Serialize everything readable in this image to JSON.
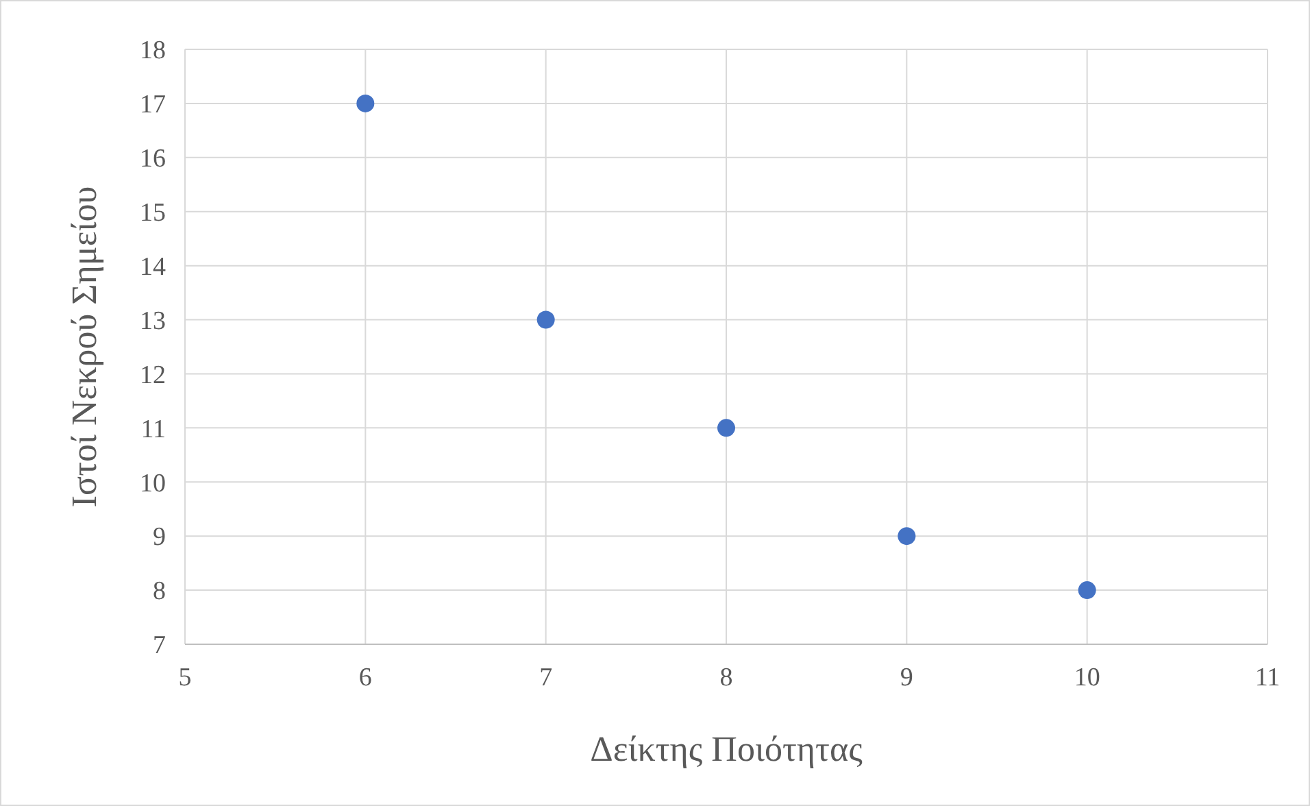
{
  "chart_data": {
    "type": "scatter",
    "xlabel": "Δείκτης Ποιότητας",
    "ylabel": "Ιστοί Νεκρού Σημείου",
    "x": [
      6,
      7,
      8,
      9,
      10
    ],
    "values": [
      17,
      13,
      11,
      9,
      8
    ],
    "color": "#4472c4",
    "xlim": [
      5,
      11
    ],
    "xticks": [
      5,
      6,
      7,
      8,
      9,
      10,
      11
    ],
    "ylim": [
      7,
      18
    ],
    "yticks": [
      7,
      8,
      9,
      10,
      11,
      12,
      13,
      14,
      15,
      16,
      17,
      18
    ],
    "grid": true,
    "marker": "circle"
  }
}
